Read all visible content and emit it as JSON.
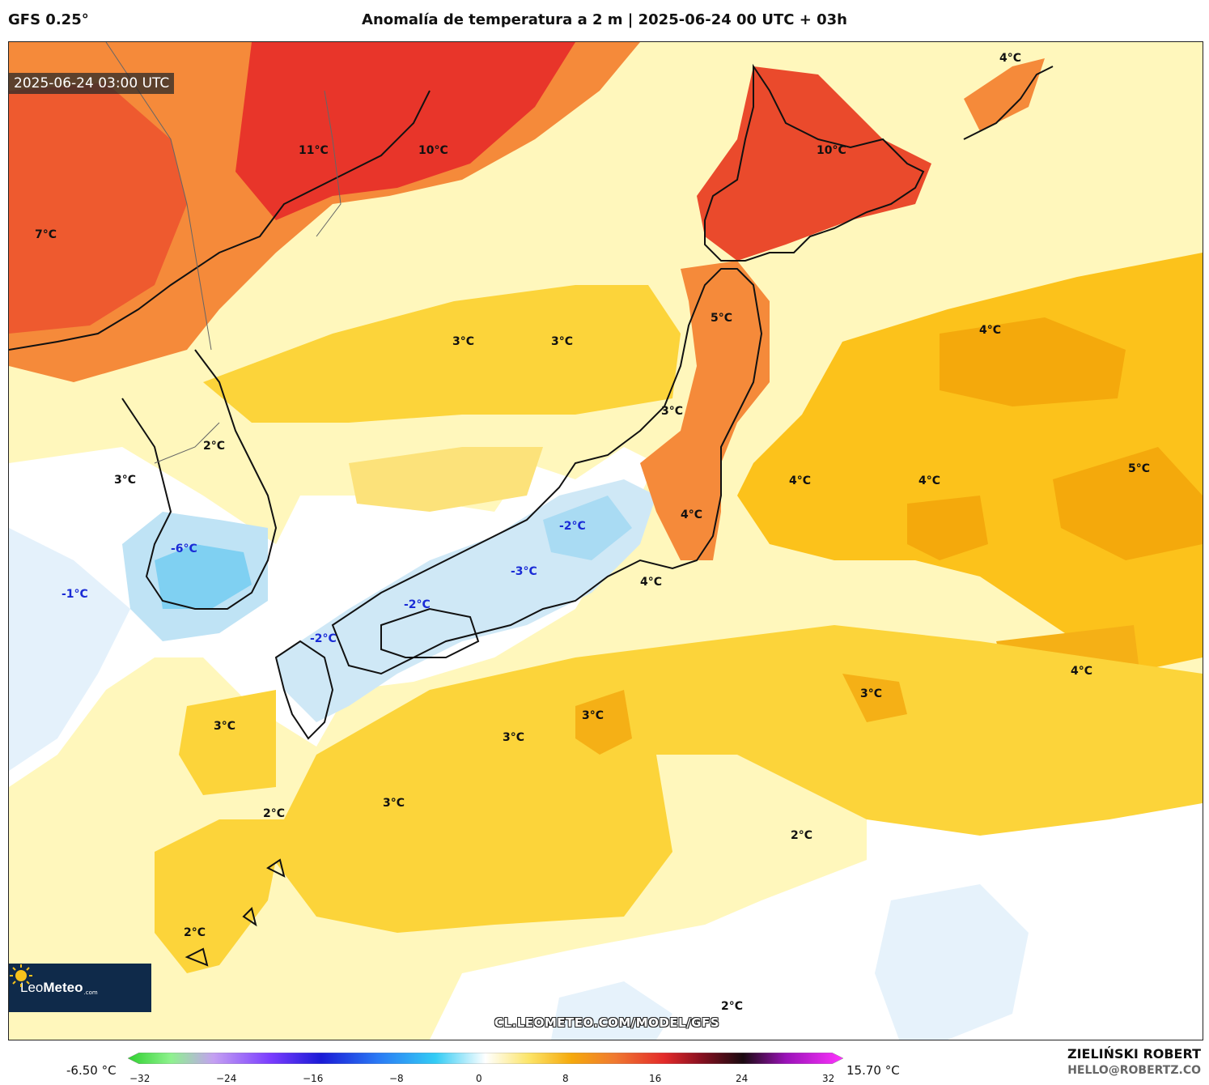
{
  "header": {
    "model": "GFS 0.25°",
    "title": "Anomalía de temperatura a 2 m | 2025-06-24 00 UTC + 03h"
  },
  "map": {
    "timestamp": "2025-06-24 03:00 UTC",
    "labels": [
      {
        "text": "11°C",
        "kind": "warm"
      },
      {
        "text": "10°C",
        "kind": "warm"
      },
      {
        "text": "10°C",
        "kind": "warm"
      },
      {
        "text": "4°C",
        "kind": "warm"
      },
      {
        "text": "7°C",
        "kind": "warm"
      },
      {
        "text": "3°C",
        "kind": "warm"
      },
      {
        "text": "3°C",
        "kind": "warm"
      },
      {
        "text": "5°C",
        "kind": "warm"
      },
      {
        "text": "4°C",
        "kind": "warm"
      },
      {
        "text": "3°C",
        "kind": "warm"
      },
      {
        "text": "2°C",
        "kind": "warm"
      },
      {
        "text": "3°C",
        "kind": "warm"
      },
      {
        "text": "4°C",
        "kind": "warm"
      },
      {
        "text": "4°C",
        "kind": "warm"
      },
      {
        "text": "5°C",
        "kind": "warm"
      },
      {
        "text": "4°C",
        "kind": "warm"
      },
      {
        "text": "-2°C",
        "kind": "cold"
      },
      {
        "text": "-6°C",
        "kind": "cold"
      },
      {
        "text": "-3°C",
        "kind": "cold"
      },
      {
        "text": "4°C",
        "kind": "warm"
      },
      {
        "text": "-1°C",
        "kind": "cold"
      },
      {
        "text": "-2°C",
        "kind": "cold"
      },
      {
        "text": "-2°C",
        "kind": "cold"
      },
      {
        "text": "4°C",
        "kind": "warm"
      },
      {
        "text": "3°C",
        "kind": "warm"
      },
      {
        "text": "3°C",
        "kind": "warm"
      },
      {
        "text": "3°C",
        "kind": "warm"
      },
      {
        "text": "3°C",
        "kind": "warm"
      },
      {
        "text": "3°C",
        "kind": "warm"
      },
      {
        "text": "2°C",
        "kind": "warm"
      },
      {
        "text": "2°C",
        "kind": "warm"
      },
      {
        "text": "2°C",
        "kind": "warm"
      },
      {
        "text": "2°C",
        "kind": "warm"
      }
    ],
    "url": "CL.LEOMETEO.COM/MODEL/GFS",
    "logo": {
      "part1": "Leo",
      "part2": "Meteo",
      "suffix": ".com"
    }
  },
  "colorbar": {
    "min_label": "-6.50 °C",
    "max_label": "15.70 °C",
    "ticks": [
      "−32",
      "−24",
      "−16",
      "−8",
      "0",
      "8",
      "16",
      "24",
      "32"
    ],
    "range": [
      -32,
      32
    ]
  },
  "credits": {
    "author": "ZIELIŃSKI ROBERT",
    "email": "HELLO@ROBERTZ.CO"
  }
}
